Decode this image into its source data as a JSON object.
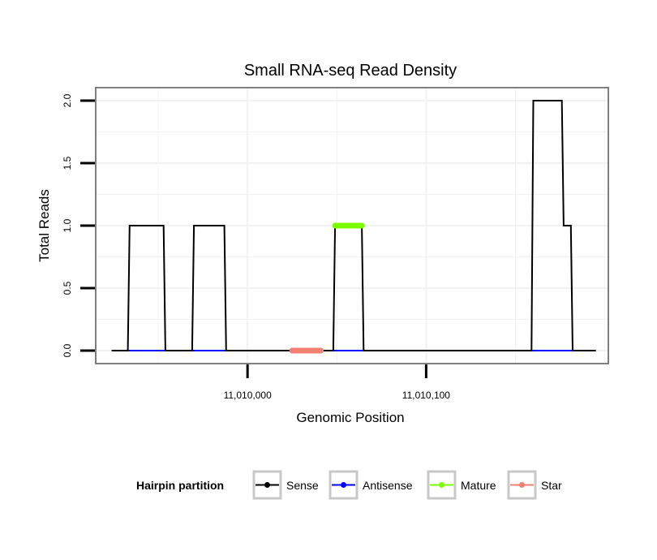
{
  "chart_data": {
    "type": "line",
    "title": "Small RNA-seq Read Density",
    "xlabel": "Genomic Position",
    "ylabel": "Total Reads",
    "xlim": [
      11009915,
      11010202
    ],
    "ylim": [
      0,
      2.0
    ],
    "x_ticks": [
      11010000,
      11010100
    ],
    "x_tick_labels": [
      "11,010,000",
      "11,010,100"
    ],
    "y_ticks": [
      0,
      0.5,
      1.0,
      1.5,
      2.0
    ],
    "y_tick_labels": [
      "0.0",
      "0.5",
      "1.0",
      "1.5",
      "2.0"
    ],
    "grid": true,
    "colors": {
      "Sense": "#000000",
      "Antisense": "#0000ff",
      "Mature": "#7cfc00",
      "Star": "#f08070"
    },
    "series": [
      {
        "name": "Sense",
        "x": [
          11009924,
          11009933,
          11009934,
          11009953,
          11009954,
          11009969,
          11009970,
          11009987,
          11009988,
          11010048,
          11010049,
          11010064,
          11010065,
          11010159,
          11010160,
          11010176,
          11010177,
          11010181,
          11010182,
          11010195
        ],
        "values": [
          0,
          0,
          1,
          1,
          0,
          0,
          1,
          1,
          0,
          0,
          1,
          1,
          0,
          0,
          2,
          2,
          1,
          1,
          0,
          0
        ]
      },
      {
        "name": "Antisense",
        "x": [
          11009924,
          11010195
        ],
        "values": [
          0,
          0
        ]
      },
      {
        "name": "Mature",
        "x": [
          11010049,
          11010064
        ],
        "values": [
          1,
          1
        ]
      },
      {
        "name": "Star",
        "x": [
          11010025,
          11010041
        ],
        "values": [
          0,
          0
        ]
      }
    ],
    "legend": {
      "title": "Hairpin partition",
      "position": "bottom",
      "entries": [
        "Sense",
        "Antisense",
        "Mature",
        "Star"
      ]
    }
  }
}
